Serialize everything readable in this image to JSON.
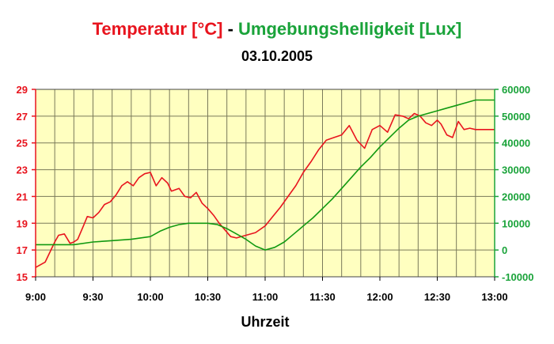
{
  "chart_data": {
    "type": "line",
    "title_parts": [
      {
        "text": "Temperatur [°C]",
        "color": "#e8141e"
      },
      {
        "text": " - ",
        "color": "#000000"
      },
      {
        "text": "Umgebungshelligkeit [Lux]",
        "color": "#1aa33a"
      }
    ],
    "subtitle": "03.10.2005",
    "xlabel": "Uhrzeit",
    "x_ticks": [
      "9:00",
      "9:30",
      "10:00",
      "10:30",
      "11:00",
      "11:30",
      "12:00",
      "12:30",
      "13:00"
    ],
    "xlim": [
      "9:00",
      "13:00"
    ],
    "y_left": {
      "ylim": [
        15,
        29
      ],
      "ticks": [
        "15",
        "17",
        "19",
        "21",
        "23",
        "25",
        "27",
        "29"
      ],
      "color": "#e8141e"
    },
    "y_right": {
      "ylim": [
        -10000,
        60000
      ],
      "ticks": [
        "-10000",
        "0",
        "10000",
        "20000",
        "30000",
        "40000",
        "50000",
        "60000"
      ],
      "color": "#1aa33a"
    },
    "grid": true,
    "plot_background": "#ffffc0",
    "series": [
      {
        "color": "#e8141e",
        "axis": "left",
        "x": [
          "9:00",
          "9:05",
          "9:10",
          "9:12",
          "9:15",
          "9:18",
          "9:20",
          "9:22",
          "9:25",
          "9:27",
          "9:30",
          "9:33",
          "9:36",
          "9:39",
          "9:42",
          "9:45",
          "9:48",
          "9:51",
          "9:54",
          "9:57",
          "10:00",
          "10:03",
          "10:06",
          "10:09",
          "10:11",
          "10:13",
          "10:15",
          "10:18",
          "10:21",
          "10:24",
          "10:27",
          "10:30",
          "10:33",
          "10:36",
          "10:39",
          "10:42",
          "10:45",
          "10:50",
          "10:55",
          "11:00",
          "11:04",
          "11:08",
          "11:12",
          "11:16",
          "11:20",
          "11:24",
          "11:28",
          "11:32",
          "11:36",
          "11:40",
          "11:44",
          "11:48",
          "11:52",
          "11:56",
          "12:00",
          "12:04",
          "12:08",
          "12:12",
          "12:15",
          "12:18",
          "12:21",
          "12:24",
          "12:27",
          "12:30",
          "12:32",
          "12:35",
          "12:38",
          "12:41",
          "12:44",
          "12:47",
          "12:50",
          "12:53",
          "12:56",
          "12:58",
          "13:00"
        ],
        "values": [
          15.7,
          16.1,
          17.6,
          18.1,
          18.2,
          17.5,
          17.6,
          17.8,
          18.8,
          19.5,
          19.4,
          19.8,
          20.4,
          20.6,
          21.1,
          21.8,
          22.1,
          21.8,
          22.4,
          22.7,
          22.8,
          21.8,
          22.4,
          22.0,
          21.4,
          21.5,
          21.6,
          21.0,
          20.9,
          21.3,
          20.5,
          20.1,
          19.6,
          19.0,
          18.5,
          18.0,
          17.9,
          18.1,
          18.3,
          18.8,
          19.5,
          20.2,
          21.0,
          21.8,
          22.8,
          23.6,
          24.5,
          25.2,
          25.4,
          25.6,
          26.3,
          25.2,
          24.6,
          26.0,
          26.3,
          25.8,
          27.1,
          27.0,
          26.8,
          27.2,
          27.0,
          26.5,
          26.3,
          26.7,
          26.4,
          25.6,
          25.4,
          26.6,
          26.0,
          26.1,
          26.0,
          26.0,
          26.0,
          26.0,
          26.0
        ]
      },
      {
        "color": "#119911",
        "axis": "right",
        "x": [
          "9:00",
          "9:10",
          "9:20",
          "9:30",
          "9:40",
          "9:50",
          "10:00",
          "10:05",
          "10:10",
          "10:15",
          "10:20",
          "10:25",
          "10:30",
          "10:35",
          "10:40",
          "10:45",
          "10:50",
          "10:55",
          "11:00",
          "11:05",
          "11:10",
          "11:15",
          "11:20",
          "11:25",
          "11:30",
          "11:35",
          "11:40",
          "11:45",
          "11:50",
          "11:55",
          "12:00",
          "12:05",
          "12:10",
          "12:15",
          "12:20",
          "12:25",
          "12:30",
          "12:35",
          "12:40",
          "12:45",
          "12:50",
          "12:55",
          "13:00"
        ],
        "values": [
          2000,
          2000,
          2000,
          3000,
          3500,
          4000,
          5000,
          7000,
          8500,
          9500,
          10000,
          10000,
          10000,
          9500,
          8000,
          6000,
          4000,
          1500,
          0,
          1000,
          3000,
          6000,
          9000,
          12000,
          15500,
          19000,
          23000,
          27000,
          31000,
          34500,
          38500,
          42000,
          45500,
          48500,
          50000,
          51000,
          52000,
          53000,
          54000,
          55000,
          56000,
          56000,
          56000
        ]
      }
    ]
  }
}
